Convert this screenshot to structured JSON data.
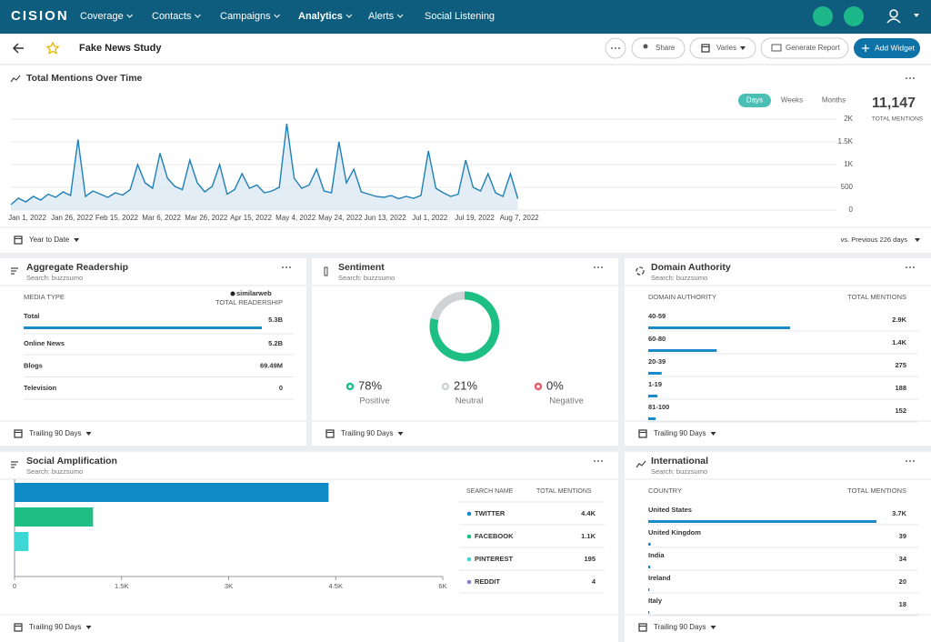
{
  "nav": {
    "logo": "CISION",
    "items": [
      "Coverage",
      "Contacts",
      "Campaigns",
      "Analytics",
      "Alerts",
      "Social Listening"
    ]
  },
  "header": {
    "title": "Fake News Study",
    "share": "Share",
    "date_filter": "Varies",
    "report": "Generate Report",
    "add": "Add Widget"
  },
  "chart_data": [
    {
      "type": "line",
      "title": "Total Mentions Over Time",
      "color": "#1f7fb6",
      "categories": [
        "Jan 1, 2022",
        null,
        null,
        null,
        null,
        null,
        "Jan 26, 2022",
        null,
        null,
        null,
        null,
        null,
        "Feb 15, 2022",
        null,
        null,
        null,
        null,
        null,
        "Mar 6, 2022",
        null,
        null,
        null,
        null,
        null,
        "Mar 26, 2022",
        null,
        null,
        null,
        null,
        null,
        "Apr 15, 2022",
        null,
        null,
        null,
        null,
        null,
        "May 4, 2022",
        null,
        null,
        null,
        null,
        null,
        "May 24, 2022",
        null,
        null,
        null,
        null,
        null,
        "Jun 13, 2022",
        null,
        null,
        null,
        null,
        null,
        "Jul 1, 2022",
        null,
        null,
        null,
        null,
        null,
        "Jul 19, 2022",
        null,
        null,
        null,
        null,
        null,
        "Aug 7, 2022",
        null,
        null
      ],
      "values": [
        120,
        260,
        180,
        300,
        220,
        350,
        280,
        400,
        320,
        1550,
        300,
        420,
        350,
        280,
        380,
        330,
        450,
        1000,
        600,
        480,
        1250,
        700,
        520,
        450,
        1100,
        600,
        400,
        520,
        1000,
        350,
        450,
        800,
        480,
        550,
        380,
        420,
        500,
        1900,
        700,
        480,
        550,
        900,
        420,
        380,
        1500,
        600,
        900,
        400,
        350,
        300,
        280,
        320,
        250,
        300,
        260,
        320,
        1300,
        480,
        380,
        300,
        350,
        1100,
        500,
        420,
        800,
        380,
        300,
        800,
        250
      ],
      "ylim": [
        0,
        2200
      ],
      "yticks": [
        0,
        500,
        {
          "value": 1000,
          "label": "1K"
        },
        {
          "value": 1500,
          "label": "1.5K"
        },
        {
          "value": 2000,
          "label": "2K"
        }
      ],
      "grid": true,
      "intervals": [
        "Days",
        "Weeks",
        "Months"
      ],
      "total": "11,147",
      "total_caption": "TOTAL MENTIONS",
      "date_range": "Year to Date",
      "comparison": "vs. Previous 226 days"
    },
    {
      "type": "pie",
      "title": "Sentiment",
      "subtitle": "Search: buzzsumo",
      "categories": [
        "Positive",
        "Neutral",
        "Negative"
      ],
      "values": [
        78,
        21,
        0
      ],
      "value_labels": [
        "78%",
        "21%",
        "0%"
      ],
      "colors": [
        "#1dbf85",
        "#cfd3d6",
        "#e85d6c"
      ],
      "footer": "Trailing 90 Days"
    },
    {
      "type": "bar",
      "orientation": "horizontal",
      "title": "Social Amplification",
      "subtitle": "Search: buzzsumo",
      "categories": [
        "TWITTER",
        "FACEBOOK",
        "PINTEREST",
        "REDDIT"
      ],
      "values": [
        4400,
        1100,
        195,
        4
      ],
      "value_labels": [
        "4.4K",
        "1.1K",
        "195",
        "4"
      ],
      "colors": [
        "#0e8ac4",
        "#1dbf85",
        "#3fd6d6",
        "#8a7fd1"
      ],
      "xlim": [
        0,
        6000
      ],
      "xticks": [
        0,
        {
          "value": 1500,
          "label": "1.5K"
        },
        {
          "value": 3000,
          "label": "3K"
        },
        {
          "value": 4500,
          "label": "4.5K"
        },
        {
          "value": 6000,
          "label": "6K"
        }
      ],
      "legend_headers": [
        "SEARCH NAME",
        "TOTAL MENTIONS"
      ],
      "footer": "Trailing 90 Days"
    }
  ],
  "readership": {
    "title": "Aggregate Readership",
    "subtitle": "Search: buzzsumo",
    "columns": [
      "MEDIA TYPE",
      "TOTAL READERSHIP"
    ],
    "source": "similarweb",
    "total": {
      "label": "Total",
      "value": 5300000000,
      "value_label": "5.3B"
    },
    "rows": [
      {
        "label": "Online News",
        "value": 5200000000,
        "value_label": "5.2B"
      },
      {
        "label": "Blogs",
        "value": 69490000,
        "value_label": "69.49M"
      },
      {
        "label": "Television",
        "value": 0
      }
    ],
    "footer": "Trailing 90 Days"
  },
  "domain_authority": {
    "title": "Domain Authority",
    "subtitle": "Search: buzzsumo",
    "columns": [
      "DOMAIN AUTHORITY",
      "TOTAL MENTIONS"
    ],
    "rows": [
      {
        "label": "40-59",
        "value": 2900,
        "value_label": "2.9K"
      },
      {
        "label": "60-80",
        "value": 1400,
        "value_label": "1.4K"
      },
      {
        "label": "20-39",
        "value": 275
      },
      {
        "label": "1-19",
        "value": 188
      },
      {
        "label": "81-100",
        "value": 152
      }
    ],
    "footer": "Trailing 90 Days"
  },
  "international": {
    "title": "International",
    "subtitle": "Search: buzzsumo",
    "columns": [
      "COUNTRY",
      "TOTAL MENTIONS"
    ],
    "rows": [
      {
        "label": "United States",
        "value": 3700,
        "value_label": "3.7K"
      },
      {
        "label": "United Kingdom",
        "value": 39
      },
      {
        "label": "India",
        "value": 34
      },
      {
        "label": "Ireland",
        "value": 20
      },
      {
        "label": "Italy",
        "value": 18
      }
    ],
    "footer": "Trailing 90 Days"
  }
}
